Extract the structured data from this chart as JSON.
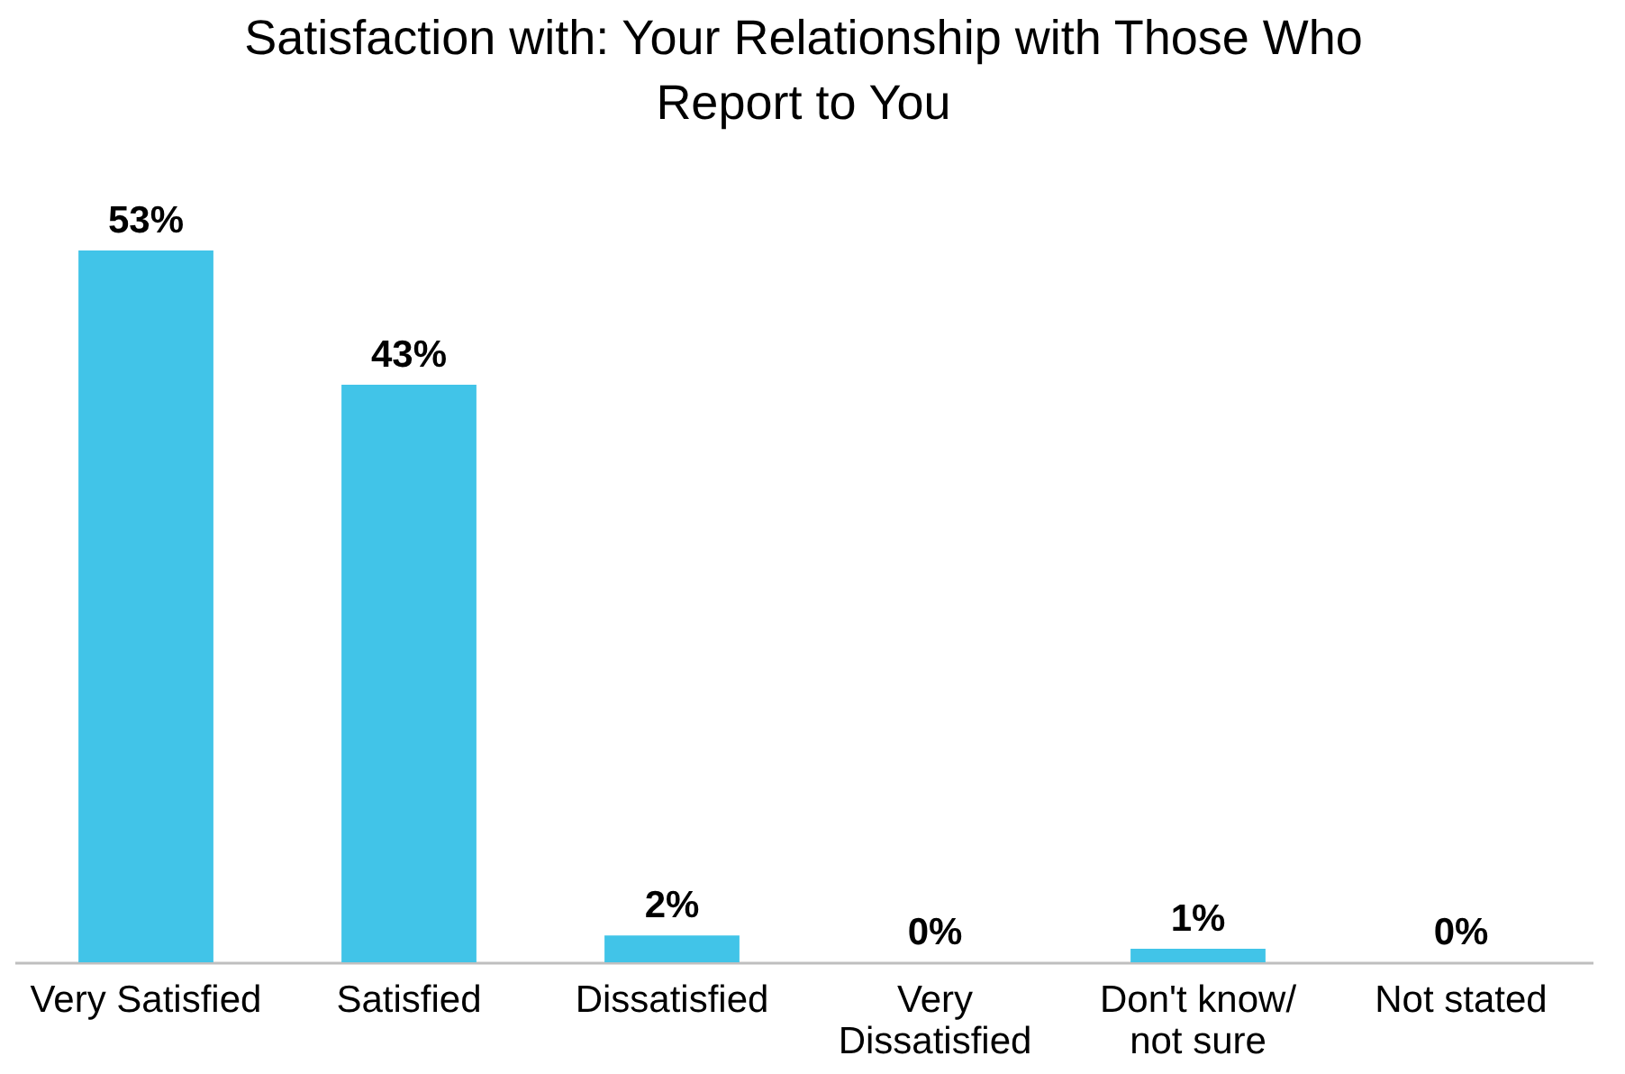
{
  "chart_data": {
    "type": "bar",
    "title": "Satisfaction with: Your Relationship with Those Who Report to You",
    "categories": [
      "Very Satisfied",
      "Satisfied",
      "Dissatisfied",
      "Very Dissatisfied",
      "Don't know/ not sure",
      "Not stated"
    ],
    "values": [
      53,
      43,
      2,
      0,
      1,
      0
    ],
    "value_labels": [
      "53%",
      "43%",
      "2%",
      "0%",
      "1%",
      "0%"
    ],
    "color": "#41c4e8"
  }
}
